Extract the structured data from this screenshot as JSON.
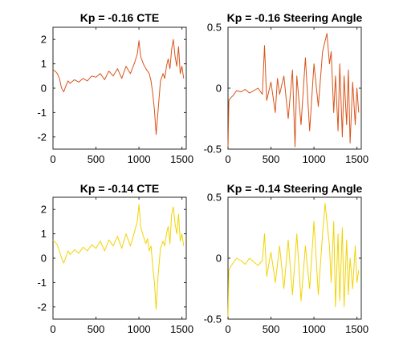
{
  "chart_data": [
    {
      "type": "line",
      "title": "Kp = -0.16 CTE",
      "color": "#d95319",
      "xlim": [
        0,
        1550
      ],
      "ylim": [
        -2.5,
        2.5
      ],
      "xticks": [
        0,
        500,
        1000,
        1500
      ],
      "yticks": [
        -2,
        -1,
        0,
        1,
        2
      ],
      "xtick_labels": [
        "0",
        "500",
        "1000",
        "1500"
      ],
      "ytick_labels": [
        "-2",
        "-1",
        "0",
        "1",
        "2"
      ],
      "series": [
        {
          "name": "CTE",
          "x": [
            0,
            25,
            50,
            75,
            100,
            125,
            150,
            175,
            200,
            250,
            300,
            350,
            400,
            450,
            500,
            550,
            600,
            650,
            700,
            750,
            800,
            850,
            900,
            950,
            980,
            1000,
            1020,
            1050,
            1080,
            1100,
            1120,
            1140,
            1160,
            1180,
            1200,
            1220,
            1250,
            1280,
            1300,
            1320,
            1340,
            1360,
            1380,
            1400,
            1420,
            1440,
            1460,
            1480,
            1500,
            1520
          ],
          "y": [
            0.75,
            0.7,
            0.6,
            0.4,
            0.0,
            -0.15,
            0.1,
            0.3,
            0.2,
            0.35,
            0.25,
            0.4,
            0.3,
            0.5,
            0.45,
            0.6,
            0.35,
            0.7,
            0.5,
            0.8,
            0.4,
            0.9,
            0.6,
            1.05,
            1.4,
            1.95,
            1.3,
            1.0,
            0.8,
            0.7,
            0.6,
            0.3,
            -0.2,
            -0.9,
            -1.9,
            -1.0,
            0.3,
            0.6,
            0.4,
            0.9,
            1.2,
            0.8,
            1.6,
            2.0,
            1.3,
            0.9,
            1.7,
            0.6,
            0.9,
            0.4
          ]
        }
      ]
    },
    {
      "type": "line",
      "title": "Kp = -0.16 Steering Angle",
      "color": "#d95319",
      "xlim": [
        0,
        1550
      ],
      "ylim": [
        -0.5,
        0.5
      ],
      "xticks": [
        0,
        500,
        1000,
        1500
      ],
      "yticks": [
        -0.5,
        0,
        0.5
      ],
      "xtick_labels": [
        "0",
        "500",
        "1000",
        "1500"
      ],
      "ytick_labels": [
        "-0.5",
        "0",
        "0.5"
      ],
      "series": [
        {
          "name": "Steering Angle",
          "x": [
            0,
            10,
            30,
            60,
            100,
            150,
            200,
            250,
            300,
            350,
            400,
            425,
            450,
            500,
            550,
            575,
            600,
            650,
            700,
            750,
            780,
            800,
            850,
            900,
            950,
            1000,
            1050,
            1100,
            1150,
            1180,
            1200,
            1230,
            1250,
            1280,
            1300,
            1330,
            1350,
            1380,
            1400,
            1420,
            1450,
            1480,
            1500,
            1520
          ],
          "y": [
            -0.5,
            -0.1,
            -0.08,
            -0.06,
            -0.02,
            -0.03,
            -0.01,
            -0.04,
            -0.02,
            0.0,
            -0.05,
            0.35,
            -0.1,
            0.05,
            -0.2,
            0.08,
            -0.05,
            0.1,
            -0.25,
            0.15,
            -0.48,
            0.1,
            -0.3,
            0.25,
            -0.35,
            0.2,
            -0.15,
            0.3,
            0.45,
            0.2,
            0.3,
            -0.2,
            0.1,
            -0.35,
            0.2,
            -0.4,
            0.1,
            -0.3,
            0.15,
            -0.45,
            0.05,
            -0.3,
            0.0,
            -0.2
          ]
        }
      ]
    },
    {
      "type": "line",
      "title": "Kp = -0.14 CTE",
      "color": "#f2d400",
      "xlim": [
        0,
        1550
      ],
      "ylim": [
        -2.5,
        2.5
      ],
      "xticks": [
        0,
        500,
        1000,
        1500
      ],
      "yticks": [
        -2,
        -1,
        0,
        1,
        2
      ],
      "xtick_labels": [
        "0",
        "500",
        "1000",
        "1500"
      ],
      "ytick_labels": [
        "-2",
        "-1",
        "0",
        "1",
        "2"
      ],
      "series": [
        {
          "name": "CTE",
          "x": [
            0,
            25,
            50,
            75,
            100,
            125,
            150,
            175,
            200,
            250,
            300,
            350,
            400,
            450,
            500,
            550,
            600,
            650,
            700,
            750,
            800,
            850,
            900,
            950,
            980,
            1000,
            1020,
            1050,
            1080,
            1100,
            1120,
            1140,
            1160,
            1180,
            1200,
            1220,
            1250,
            1280,
            1300,
            1320,
            1340,
            1360,
            1380,
            1400,
            1420,
            1440,
            1460,
            1480,
            1500,
            1520
          ],
          "y": [
            0.75,
            0.65,
            0.55,
            0.3,
            0.0,
            -0.2,
            0.05,
            0.3,
            0.15,
            0.35,
            0.2,
            0.45,
            0.3,
            0.55,
            0.4,
            0.7,
            0.3,
            0.75,
            0.5,
            0.9,
            0.4,
            1.0,
            0.5,
            1.1,
            1.5,
            2.2,
            1.3,
            0.9,
            0.6,
            0.8,
            0.3,
            0.5,
            -0.3,
            -1.0,
            -2.1,
            -0.8,
            0.4,
            0.7,
            0.5,
            1.0,
            1.3,
            0.6,
            1.8,
            2.1,
            1.4,
            1.0,
            1.8,
            0.7,
            1.0,
            0.5
          ]
        }
      ]
    },
    {
      "type": "line",
      "title": "Kp = -0.14 Steering Angle",
      "color": "#f2d400",
      "xlim": [
        0,
        1550
      ],
      "ylim": [
        -0.5,
        0.5
      ],
      "xticks": [
        0,
        500,
        1000,
        1500
      ],
      "yticks": [
        -0.5,
        0,
        0.5
      ],
      "xtick_labels": [
        "0",
        "500",
        "1000",
        "1500"
      ],
      "ytick_labels": [
        "-0.5",
        "0",
        "0.5"
      ],
      "series": [
        {
          "name": "Steering Angle",
          "x": [
            0,
            10,
            30,
            60,
            100,
            150,
            200,
            250,
            300,
            350,
            400,
            425,
            450,
            500,
            550,
            600,
            650,
            700,
            750,
            800,
            850,
            900,
            950,
            1000,
            1050,
            1100,
            1130,
            1150,
            1180,
            1200,
            1230,
            1250,
            1280,
            1300,
            1330,
            1350,
            1380,
            1400,
            1420,
            1450,
            1480,
            1500,
            1520
          ],
          "y": [
            -0.5,
            -0.1,
            -0.07,
            -0.04,
            0.0,
            -0.02,
            -0.05,
            0.0,
            -0.03,
            -0.06,
            -0.02,
            0.2,
            -0.15,
            0.05,
            -0.2,
            0.1,
            -0.25,
            0.15,
            -0.3,
            0.2,
            -0.35,
            0.1,
            -0.25,
            0.3,
            -0.3,
            0.2,
            0.45,
            0.3,
            0.1,
            -0.2,
            0.3,
            -0.4,
            0.2,
            -0.35,
            0.25,
            -0.4,
            0.15,
            -0.3,
            0.0,
            -0.25,
            0.1,
            -0.2,
            -0.1
          ]
        }
      ]
    }
  ]
}
